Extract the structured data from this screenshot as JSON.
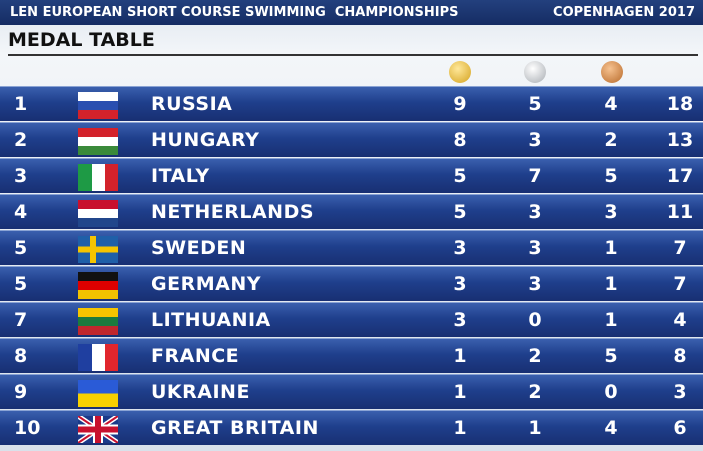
{
  "header": {
    "title": "LEN EUROPEAN SHORT COURSE SWIMMING  CHAMPIONSHIPS",
    "location": "COPENHAGEN 2017",
    "subtitle": "MEDAL TABLE"
  },
  "table": {
    "rows": [
      [
        1,
        "RUSSIA",
        9,
        5,
        4,
        18
      ],
      [
        2,
        "HUNGARY",
        8,
        3,
        2,
        13
      ],
      [
        3,
        "ITALY",
        5,
        7,
        5,
        17
      ],
      [
        4,
        "NETHERLANDS",
        5,
        3,
        3,
        11
      ],
      [
        5,
        "SWEDEN",
        3,
        3,
        1,
        7
      ],
      [
        5,
        "GERMANY",
        3,
        3,
        1,
        7
      ],
      [
        7,
        "LITHUANIA",
        3,
        0,
        1,
        4
      ],
      [
        8,
        "FRANCE",
        1,
        2,
        5,
        8
      ],
      [
        9,
        "UKRAINE",
        1,
        2,
        0,
        3
      ],
      [
        10,
        "GREAT BRITAIN",
        1,
        1,
        4,
        6
      ]
    ]
  }
}
